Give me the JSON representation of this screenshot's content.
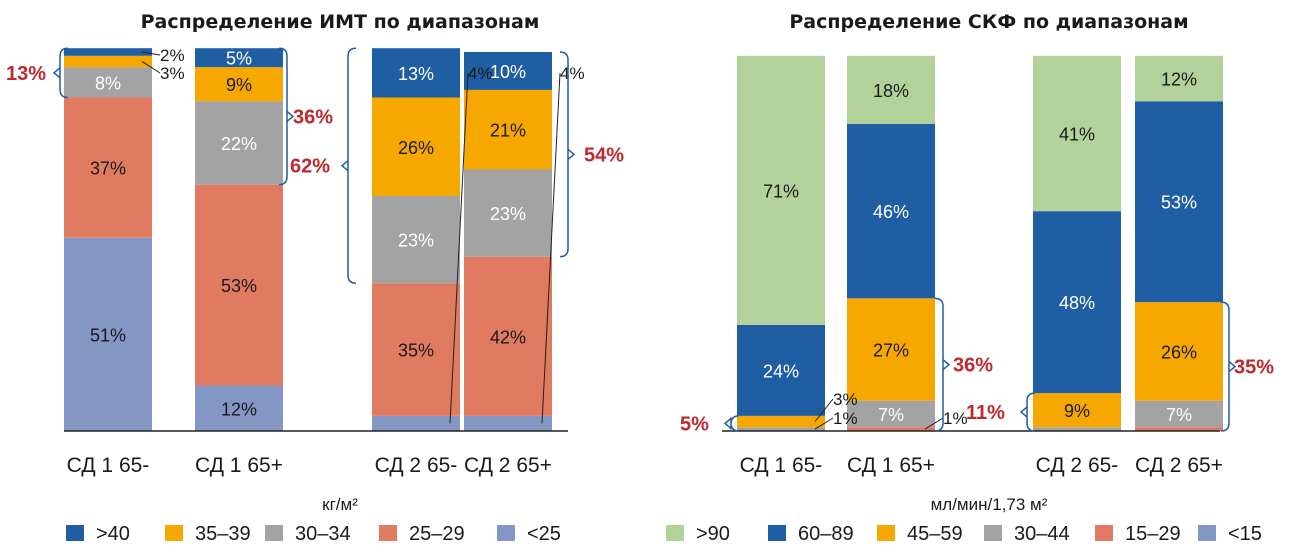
{
  "chart_data": [
    {
      "type": "bar",
      "stacked": true,
      "title": "Распределение ИМТ по диапазонам",
      "categories": [
        "СД 1 65-",
        "СД 1 65+",
        "СД 2 65-",
        "СД 2 65+"
      ],
      "unit": "кг/м²",
      "series": [
        {
          "name": "<25",
          "color": "#8497c4",
          "values": [
            51,
            12,
            4,
            4
          ],
          "labels": [
            "51%",
            "12%",
            "4%",
            "4%"
          ]
        },
        {
          "name": "25–29",
          "color": "#e07b62",
          "values": [
            37,
            53,
            35,
            42
          ],
          "labels": [
            "37%",
            "53%",
            "35%",
            "42%"
          ]
        },
        {
          "name": "30–34",
          "color": "#a3a3a3",
          "values": [
            8,
            22,
            23,
            23
          ],
          "labels": [
            "8%",
            "22%",
            "23%",
            "23%"
          ]
        },
        {
          "name": "35–39",
          "color": "#f6a800",
          "values": [
            3,
            9,
            26,
            21
          ],
          "labels": [
            "3%",
            "9%",
            "26%",
            "21%"
          ]
        },
        {
          "name": ">40",
          "color": "#1f5ea2",
          "values": [
            2,
            5,
            13,
            10
          ],
          "labels": [
            "2%",
            "5%",
            "13%",
            "10%"
          ]
        }
      ],
      "legend_order": [
        ">40",
        "35–39",
        "30–34",
        "25–29",
        "<25"
      ],
      "brackets": [
        "13%",
        "36%",
        "62%",
        "54%"
      ]
    },
    {
      "type": "bar",
      "stacked": true,
      "title": "Распределение СКФ по диапазонам",
      "categories": [
        "СД 1 65-",
        "СД 1 65+",
        "СД 2 65-",
        "СД 2 65+"
      ],
      "unit": "мл/мин/1,73 м²",
      "series": [
        {
          "name": "<15",
          "color": "#8497c4",
          "values": [
            0,
            0,
            0,
            0
          ],
          "labels": [
            "",
            "",
            "",
            ""
          ]
        },
        {
          "name": "15–29",
          "color": "#e07b62",
          "values": [
            0,
            1,
            0,
            1
          ],
          "labels": [
            "",
            "1%",
            "",
            ""
          ]
        },
        {
          "name": "30–44",
          "color": "#a3a3a3",
          "values": [
            1,
            7,
            1,
            7
          ],
          "labels": [
            "1%",
            "7%",
            "",
            "7%"
          ]
        },
        {
          "name": "45–59",
          "color": "#f6a800",
          "values": [
            3,
            27,
            9,
            26
          ],
          "labels": [
            "3%",
            "27%",
            "9%",
            "26%"
          ]
        },
        {
          "name": "60–89",
          "color": "#1f5ea2",
          "values": [
            24,
            46,
            48,
            53
          ],
          "labels": [
            "24%",
            "46%",
            "48%",
            "53%"
          ]
        },
        {
          "name": ">90",
          "color": "#b3d19b",
          "values": [
            71,
            18,
            41,
            12
          ],
          "labels": [
            "71%",
            "18%",
            "41%",
            "12%"
          ]
        }
      ],
      "legend_order": [
        ">90",
        "60–89",
        "45–59",
        "30–44",
        "15–29",
        "<15"
      ],
      "brackets": [
        "5%",
        "36%",
        "11%",
        "35%"
      ]
    }
  ]
}
